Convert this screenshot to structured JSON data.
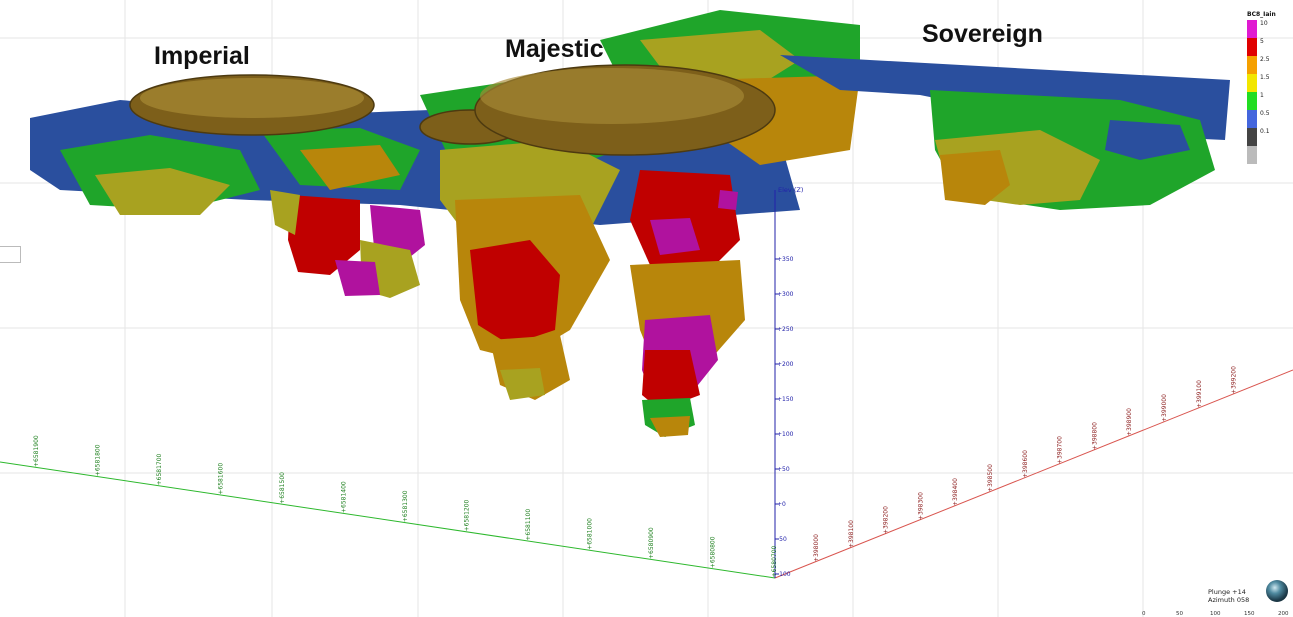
{
  "pits": [
    {
      "name": "Imperial",
      "color": "#8a6b1e"
    },
    {
      "name": "Majestic",
      "color": "#8a6b1e"
    },
    {
      "name": "Sovereign"
    }
  ],
  "legend": {
    "title": "BC8_Iain",
    "items": [
      {
        "label": "10",
        "color": "#e01ad1"
      },
      {
        "label": "5",
        "color": "#e00000"
      },
      {
        "label": "2.5",
        "color": "#f5a000"
      },
      {
        "label": "1.5",
        "color": "#f2e600"
      },
      {
        "label": "1",
        "color": "#22dd22"
      },
      {
        "label": "0.5",
        "color": "#4466dd"
      },
      {
        "label": "0.1",
        "color": "#444444"
      },
      {
        "label": "",
        "color": "#bbbbbb"
      }
    ]
  },
  "block_colors": {
    "blue": "#2a4f9e",
    "green": "#1fa52a",
    "olive": "#a8a220",
    "orange": "#b8860b",
    "red": "#c00000",
    "magenta": "#b0129e",
    "pit": "#7d5f1a"
  },
  "axes": {
    "elev": {
      "title": "Elev (Z)",
      "color": "#2222aa",
      "ticks": [
        "+350",
        "+300",
        "+250",
        "+200",
        "+150",
        "+100",
        "+50",
        "+0",
        "-50",
        "-100"
      ]
    },
    "north": {
      "color": "#2db82d",
      "label_color": "#1c7f1c",
      "ticks": [
        "+6581900",
        "+6581800",
        "+6581700",
        "+6581600",
        "+6581500",
        "+6581400",
        "+6581300",
        "+6581200",
        "+6581100",
        "+6581000",
        "+6580900",
        "+6580800",
        "+6580700"
      ]
    },
    "east": {
      "color": "#d9554f",
      "label_color": "#8c1d1d",
      "ticks": [
        "+398000",
        "+398100",
        "+398200",
        "+398300",
        "+398400",
        "+398500",
        "+398600",
        "+398700",
        "+398800",
        "+398900",
        "+399000",
        "+399100",
        "+399200"
      ]
    }
  },
  "orientation": {
    "plunge": "Plunge +14",
    "azimuth": "Azimuth 058"
  },
  "scale_bar": {
    "ticks": [
      "0",
      "50",
      "100",
      "150",
      "200"
    ]
  }
}
